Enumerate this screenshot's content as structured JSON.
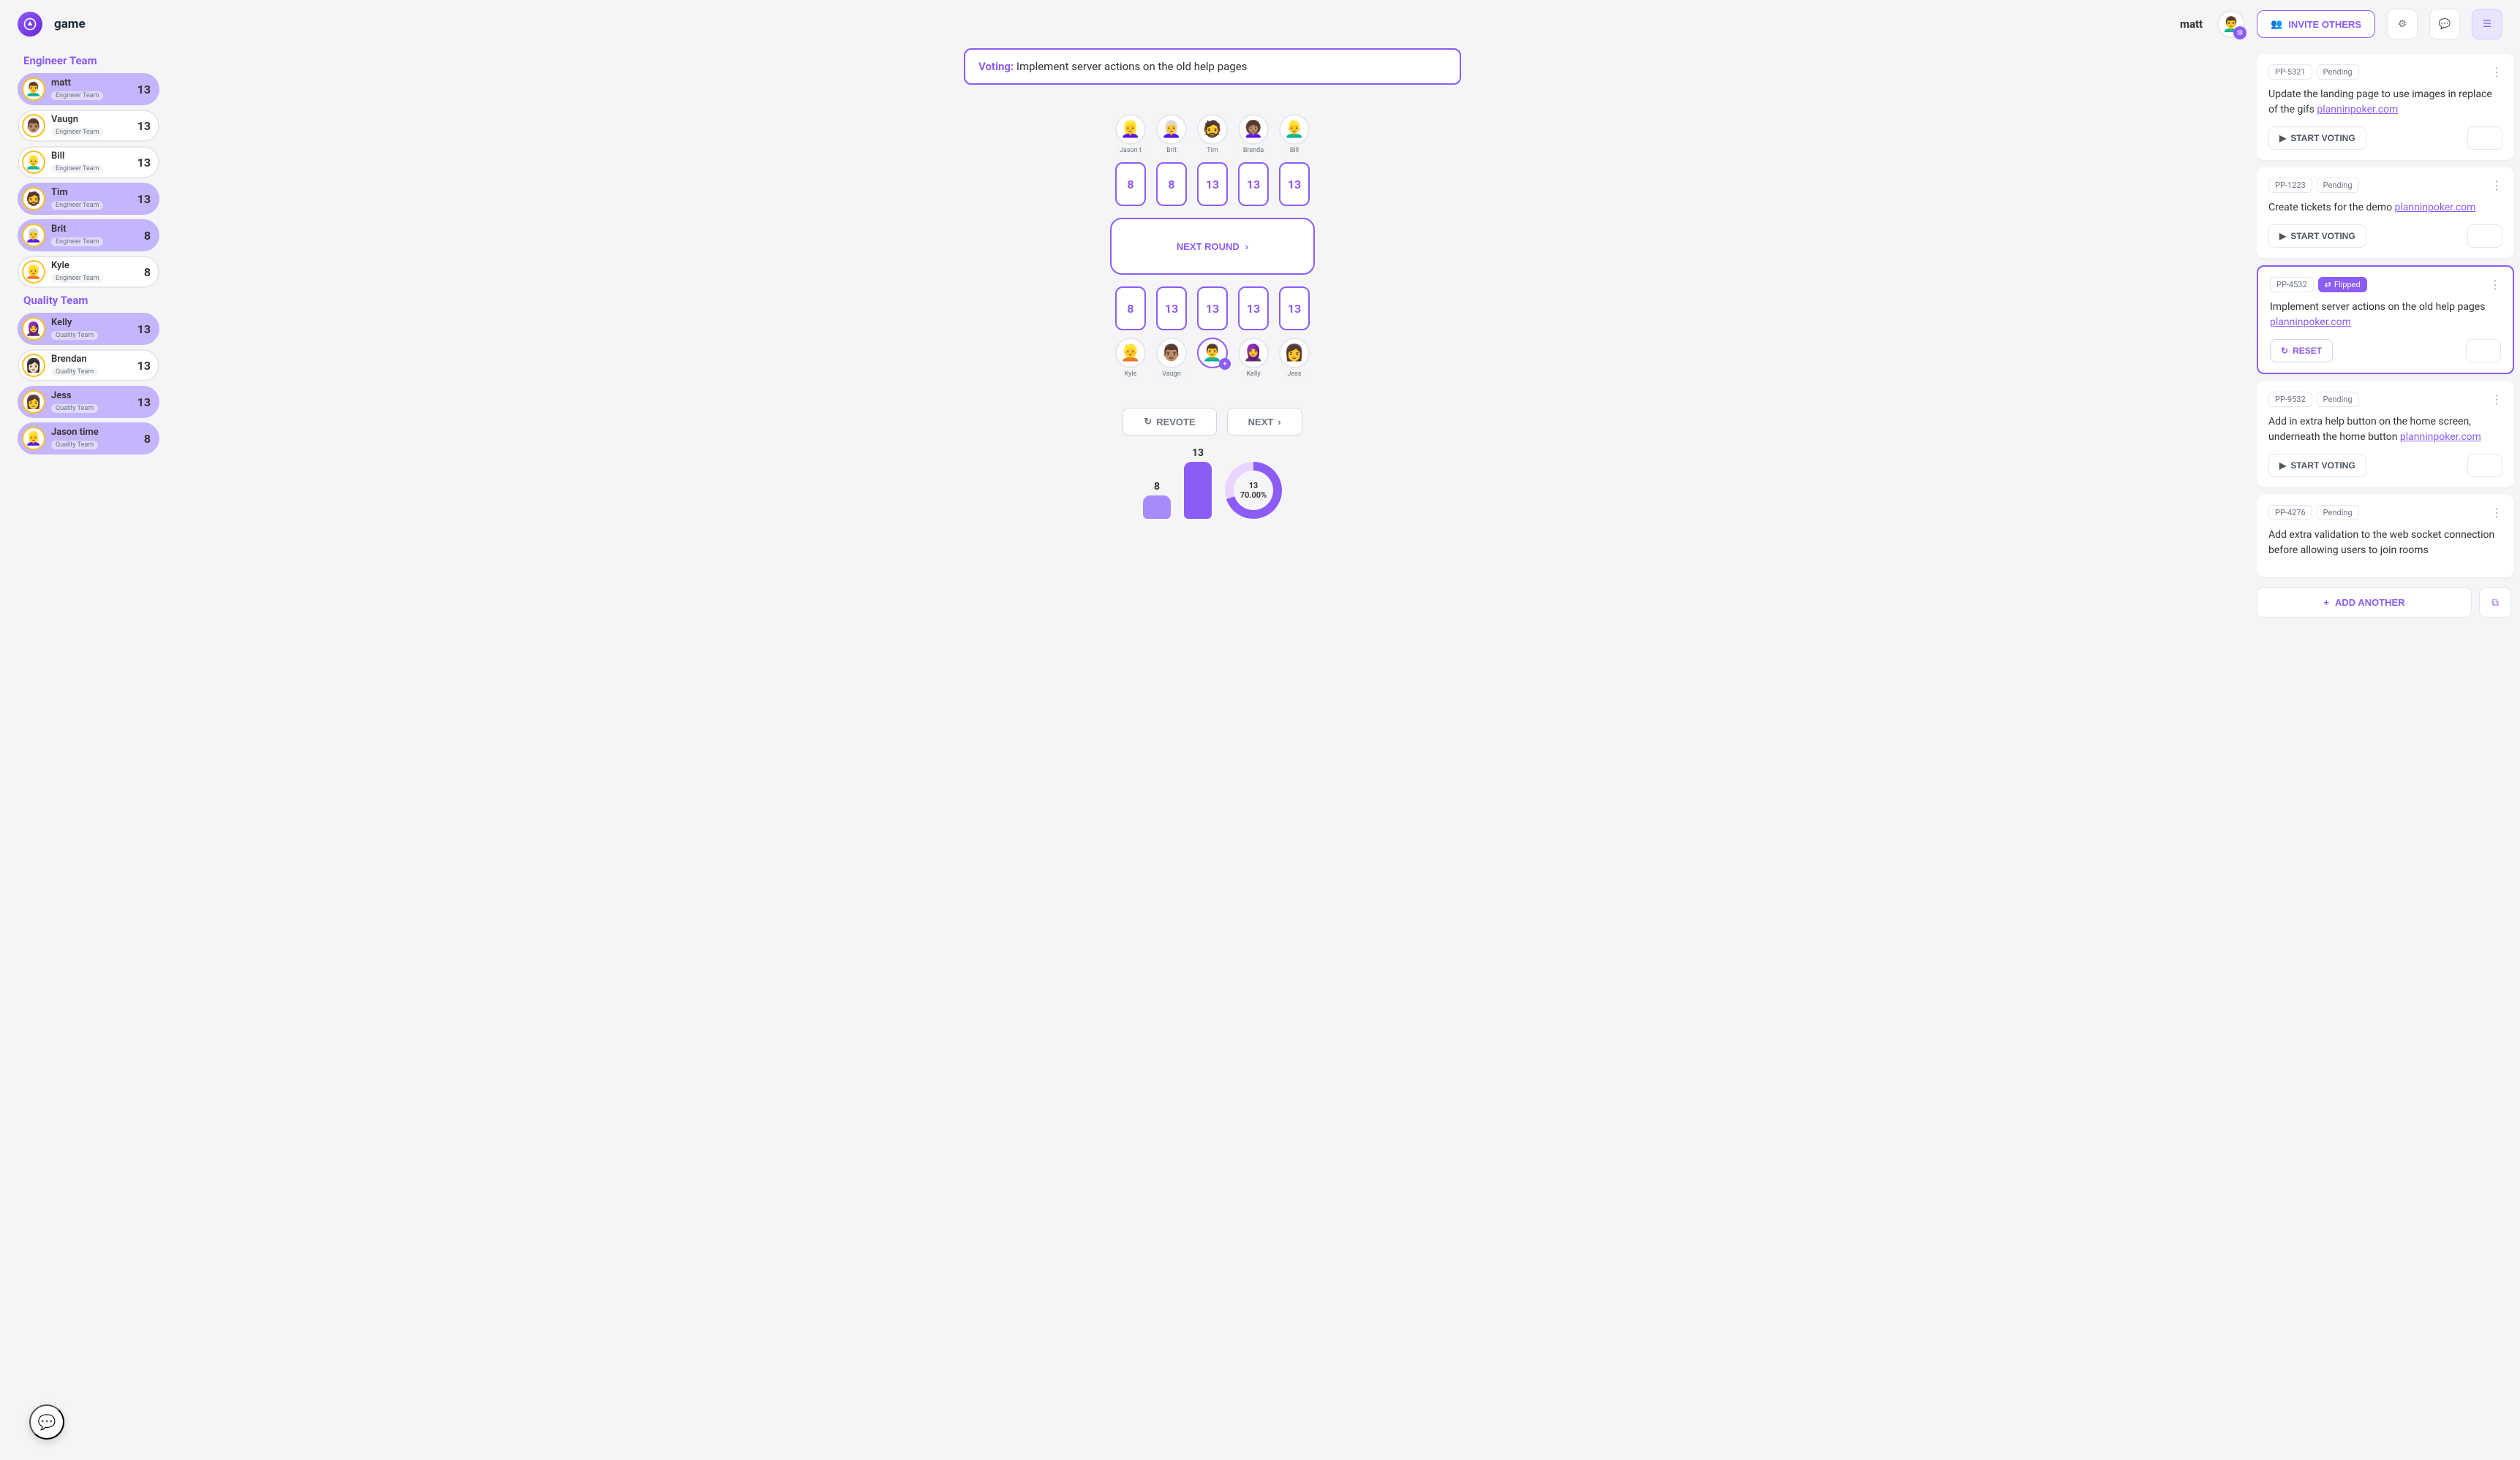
{
  "colors": {
    "primary": "#8b5cf6",
    "primary_light": "#c4b5fd",
    "primary_pale": "#e9d5ff",
    "background": "#f5f5f7",
    "border": "#e5e7eb",
    "text_muted": "#6b7280"
  },
  "header": {
    "app_title": "game",
    "username": "matt",
    "invite_label": "INVITE OTHERS"
  },
  "teams": [
    {
      "title": "Engineer Team",
      "members": [
        {
          "name": "matt",
          "sub": "Engineer Team",
          "score": "13",
          "highlight": true,
          "emoji": "👨‍🦱"
        },
        {
          "name": "Vaugn",
          "sub": "Engineer Team",
          "score": "13",
          "highlight": false,
          "emoji": "👨🏽"
        },
        {
          "name": "Bill",
          "sub": "Engineer Team",
          "score": "13",
          "highlight": false,
          "emoji": "👱‍♂️"
        },
        {
          "name": "Tim",
          "sub": "Engineer Team",
          "score": "13",
          "highlight": true,
          "emoji": "🧔"
        },
        {
          "name": "Brit",
          "sub": "Engineer Team",
          "score": "8",
          "highlight": true,
          "emoji": "👩‍🦳"
        },
        {
          "name": "Kyle",
          "sub": "Engineer Team",
          "score": "8",
          "highlight": false,
          "emoji": "👱"
        }
      ]
    },
    {
      "title": "Quality Team",
      "members": [
        {
          "name": "Kelly",
          "sub": "Quality Team",
          "score": "13",
          "highlight": true,
          "emoji": "🧕"
        },
        {
          "name": "Brendan",
          "sub": "Quality Team",
          "score": "13",
          "highlight": false,
          "emoji": "👩🏻"
        },
        {
          "name": "Jess",
          "sub": "Quality Team",
          "score": "13",
          "highlight": true,
          "emoji": "👩"
        },
        {
          "name": "Jason time",
          "sub": "Quality Team",
          "score": "8",
          "highlight": true,
          "emoji": "👱‍♀️"
        }
      ]
    }
  ],
  "voting": {
    "label": "Voting:",
    "text": "Implement server actions on the old help pages"
  },
  "table": {
    "top_seats": [
      {
        "name": "Jason t",
        "emoji": "👱‍♀️"
      },
      {
        "name": "Brit",
        "emoji": "👩‍🦳"
      },
      {
        "name": "Tim",
        "emoji": "🧔"
      },
      {
        "name": "Brenda",
        "emoji": "👩🏽‍🦱"
      },
      {
        "name": "Bill",
        "emoji": "👱‍♂️"
      }
    ],
    "top_cards": [
      "8",
      "8",
      "13",
      "13",
      "13"
    ],
    "center_label": "NEXT ROUND",
    "bottom_cards": [
      "8",
      "13",
      "13",
      "13",
      "13"
    ],
    "bottom_seats": [
      {
        "name": "Kyle",
        "emoji": "👱",
        "ringed": false
      },
      {
        "name": "Vaugn",
        "emoji": "👨🏽",
        "ringed": false
      },
      {
        "name": "",
        "emoji": "👨‍🦱",
        "ringed": true,
        "badge": true
      },
      {
        "name": "Kelly",
        "emoji": "🧕",
        "ringed": false
      },
      {
        "name": "Jess",
        "emoji": "👩",
        "ringed": false
      }
    ]
  },
  "actions": {
    "revote": "REVOTE",
    "next": "NEXT"
  },
  "stats": {
    "bars": [
      {
        "label": "8",
        "size": "small",
        "color": "#a78bfa"
      },
      {
        "label": "13",
        "size": "big",
        "color": "#8b5cf6"
      }
    ],
    "donut": {
      "value": "13",
      "percent": "70.00%",
      "fill_percent": 70
    }
  },
  "tickets": [
    {
      "id": "PP-5321",
      "status": "Pending",
      "flipped": false,
      "text": "Update the landing page to use images in replace of the gifs ",
      "link": "planninpoker.com",
      "action": "START VOTING",
      "action_type": "start"
    },
    {
      "id": "PP-1223",
      "status": "Pending",
      "flipped": false,
      "text": "Create tickets for the demo ",
      "link": "planninpoker.com",
      "action": "START VOTING",
      "action_type": "start"
    },
    {
      "id": "PP-4532",
      "status": "Flipped",
      "flipped": true,
      "active": true,
      "text": "Implement server actions on the old help pages ",
      "link": "planninpoker.com",
      "action": "RESET",
      "action_type": "reset"
    },
    {
      "id": "PP-9532",
      "status": "Pending",
      "flipped": false,
      "text": "Add in extra help button on the home screen, underneath the home button ",
      "link": "planninpoker.com",
      "action": "START VOTING",
      "action_type": "start"
    },
    {
      "id": "PP-4276",
      "status": "Pending",
      "flipped": false,
      "text": "Add extra validation to the web socket connection before allowing users to join rooms ",
      "link": "",
      "action": "",
      "action_type": "none"
    }
  ],
  "tickets_footer": {
    "add_label": "ADD ANOTHER"
  }
}
